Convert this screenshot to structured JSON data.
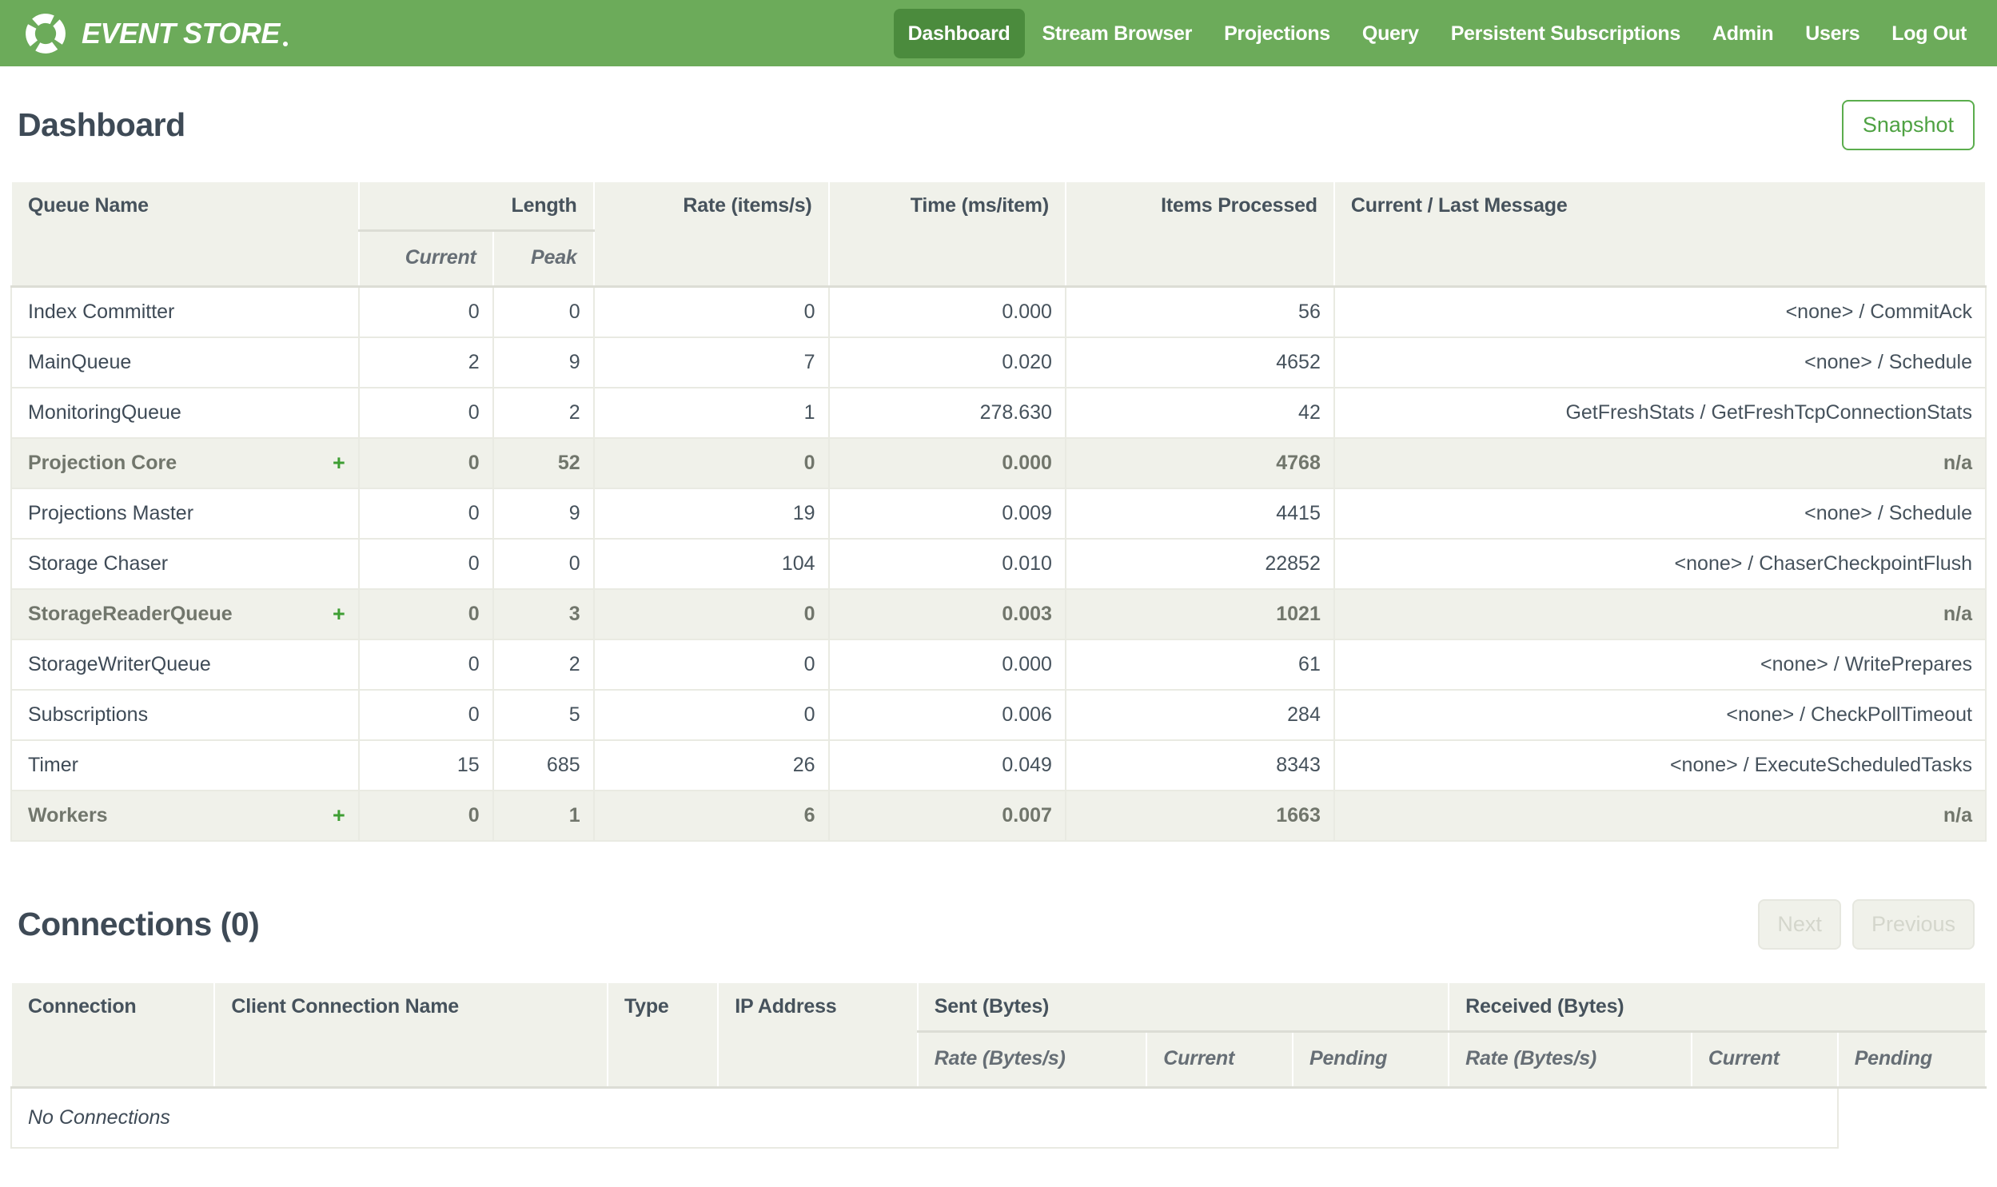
{
  "colors": {
    "navbar_green": "#6CAB5A",
    "active_nav_green": "#4B8B3D",
    "accent_green": "#4FA243",
    "plus_green": "#3E9E33",
    "header_bg": "#F0F1EA",
    "text_dark": "#3E4A56"
  },
  "navbar": {
    "brand": "EVENT STORE",
    "items": [
      {
        "label": "Dashboard",
        "active": true
      },
      {
        "label": "Stream Browser",
        "active": false
      },
      {
        "label": "Projections",
        "active": false
      },
      {
        "label": "Query",
        "active": false
      },
      {
        "label": "Persistent Subscriptions",
        "active": false
      },
      {
        "label": "Admin",
        "active": false
      },
      {
        "label": "Users",
        "active": false
      },
      {
        "label": "Log Out",
        "active": false
      }
    ]
  },
  "page": {
    "title": "Dashboard",
    "snapshot_button": "Snapshot"
  },
  "queues_table": {
    "expand_symbol": "+",
    "headers": {
      "queue_name": "Queue Name",
      "length": "Length",
      "current": "Current",
      "peak": "Peak",
      "rate": "Rate (items/s)",
      "time": "Time (ms/item)",
      "items_processed": "Items Processed",
      "message": "Current / Last Message"
    },
    "rows": [
      {
        "name": "Index Committer",
        "group": false,
        "current": "0",
        "peak": "0",
        "rate": "0",
        "time": "0.000",
        "items": "56",
        "message": "<none> / CommitAck"
      },
      {
        "name": "MainQueue",
        "group": false,
        "current": "2",
        "peak": "9",
        "rate": "7",
        "time": "0.020",
        "items": "4652",
        "message": "<none> / Schedule"
      },
      {
        "name": "MonitoringQueue",
        "group": false,
        "current": "0",
        "peak": "2",
        "rate": "1",
        "time": "278.630",
        "items": "42",
        "message": "GetFreshStats / GetFreshTcpConnectionStats"
      },
      {
        "name": "Projection Core",
        "group": true,
        "current": "0",
        "peak": "52",
        "rate": "0",
        "time": "0.000",
        "items": "4768",
        "message": "n/a"
      },
      {
        "name": "Projections Master",
        "group": false,
        "current": "0",
        "peak": "9",
        "rate": "19",
        "time": "0.009",
        "items": "4415",
        "message": "<none> / Schedule"
      },
      {
        "name": "Storage Chaser",
        "group": false,
        "current": "0",
        "peak": "0",
        "rate": "104",
        "time": "0.010",
        "items": "22852",
        "message": "<none> / ChaserCheckpointFlush"
      },
      {
        "name": "StorageReaderQueue",
        "group": true,
        "current": "0",
        "peak": "3",
        "rate": "0",
        "time": "0.003",
        "items": "1021",
        "message": "n/a"
      },
      {
        "name": "StorageWriterQueue",
        "group": false,
        "current": "0",
        "peak": "2",
        "rate": "0",
        "time": "0.000",
        "items": "61",
        "message": "<none> / WritePrepares"
      },
      {
        "name": "Subscriptions",
        "group": false,
        "current": "0",
        "peak": "5",
        "rate": "0",
        "time": "0.006",
        "items": "284",
        "message": "<none> / CheckPollTimeout"
      },
      {
        "name": "Timer",
        "group": false,
        "current": "15",
        "peak": "685",
        "rate": "26",
        "time": "0.049",
        "items": "8343",
        "message": "<none> / ExecuteScheduledTasks"
      },
      {
        "name": "Workers",
        "group": true,
        "current": "0",
        "peak": "1",
        "rate": "6",
        "time": "0.007",
        "items": "1663",
        "message": "n/a"
      }
    ]
  },
  "connections": {
    "title": "Connections (0)",
    "next_button": "Next",
    "previous_button": "Previous",
    "headers": {
      "connection": "Connection",
      "client_name": "Client Connection Name",
      "type": "Type",
      "ip": "IP Address",
      "sent": "Sent (Bytes)",
      "received": "Received (Bytes)",
      "rate": "Rate (Bytes/s)",
      "current": "Current",
      "pending": "Pending"
    },
    "empty_message": "No Connections"
  }
}
